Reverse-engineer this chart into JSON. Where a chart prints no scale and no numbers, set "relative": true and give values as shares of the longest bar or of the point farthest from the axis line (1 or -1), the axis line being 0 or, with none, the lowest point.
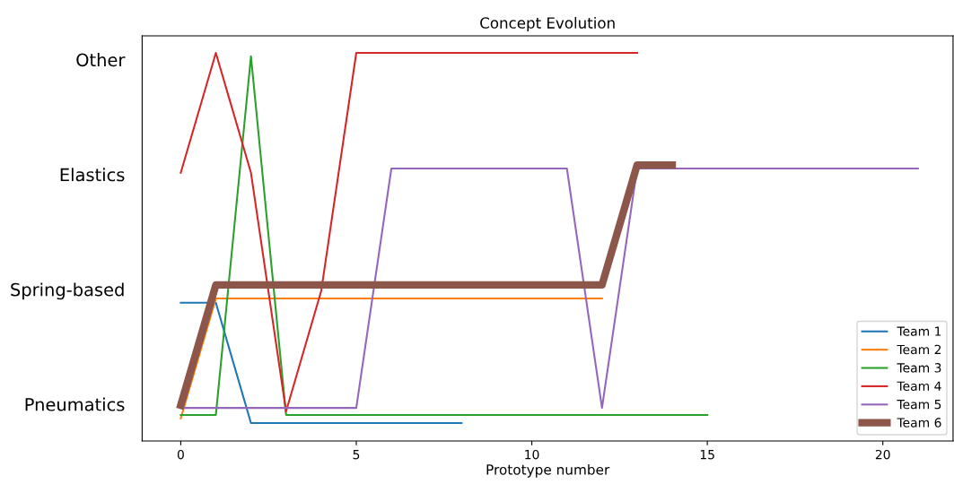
{
  "chart_data": {
    "type": "line",
    "title": "Concept Evolution",
    "xlabel": "Prototype number",
    "xlim": [
      -1.1,
      22.0
    ],
    "xticks": [
      0,
      5,
      10,
      15,
      20
    ],
    "relative": true,
    "annotations": [
      "Pneumatics",
      "Spring-based",
      "Elastics",
      "Other"
    ],
    "legend": "bottom right",
    "grid": false,
    "series": [
      {
        "name": "Team 1",
        "color": "#1f77b4",
        "x": [
          0,
          1,
          2,
          3,
          4,
          5,
          6,
          7,
          8
        ],
        "values": [
          0.356,
          0.356,
          0.046,
          0.046,
          0.046,
          0.046,
          0.046,
          0.046,
          0.046
        ]
      },
      {
        "name": "Team 2",
        "color": "#ff7f0e",
        "x": [
          0,
          1,
          2,
          3,
          4,
          5,
          6,
          7,
          8,
          9,
          10,
          11,
          12
        ],
        "values": [
          0.058,
          0.367,
          0.367,
          0.367,
          0.367,
          0.367,
          0.367,
          0.367,
          0.367,
          0.367,
          0.367,
          0.367,
          0.367
        ]
      },
      {
        "name": "Team 3",
        "color": "#2ca02c",
        "x": [
          0,
          1,
          2,
          3,
          4,
          5,
          6,
          7,
          8,
          9,
          10,
          11,
          12,
          13,
          14,
          15
        ],
        "values": [
          0.067,
          0.067,
          0.991,
          0.067,
          0.067,
          0.067,
          0.067,
          0.067,
          0.067,
          0.067,
          0.067,
          0.067,
          0.067,
          0.067,
          0.067,
          0.067
        ]
      },
      {
        "name": "Team 4",
        "color": "#d62728",
        "x": [
          0,
          1,
          2,
          3,
          4,
          5,
          6,
          7,
          8,
          9,
          10,
          11,
          12,
          13
        ],
        "values": [
          0.691,
          1,
          0.691,
          0.076,
          0.386,
          1,
          1,
          1,
          1,
          1,
          1,
          1,
          1,
          1
        ]
      },
      {
        "name": "Team 5",
        "color": "#9467bd",
        "x": [
          0,
          1,
          2,
          3,
          4,
          5,
          6,
          7,
          8,
          9,
          10,
          11,
          12,
          13,
          14,
          15,
          16,
          17,
          18,
          19,
          20,
          21
        ],
        "values": [
          0.085,
          0.085,
          0.085,
          0.085,
          0.085,
          0.085,
          0.702,
          0.702,
          0.702,
          0.702,
          0.702,
          0.702,
          0.085,
          0.702,
          0.702,
          0.702,
          0.702,
          0.702,
          0.702,
          0.702,
          0.702,
          0.702
        ]
      },
      {
        "name": "Team 6",
        "color": "#8c564b",
        "x": [
          0,
          1,
          2,
          3,
          4,
          5,
          6,
          7,
          8,
          9,
          10,
          11,
          12,
          13,
          14
        ],
        "values": [
          0.092,
          0.402,
          0.402,
          0.402,
          0.402,
          0.402,
          0.402,
          0.402,
          0.402,
          0.402,
          0.402,
          0.402,
          0.402,
          0.711,
          0.711
        ]
      }
    ]
  }
}
